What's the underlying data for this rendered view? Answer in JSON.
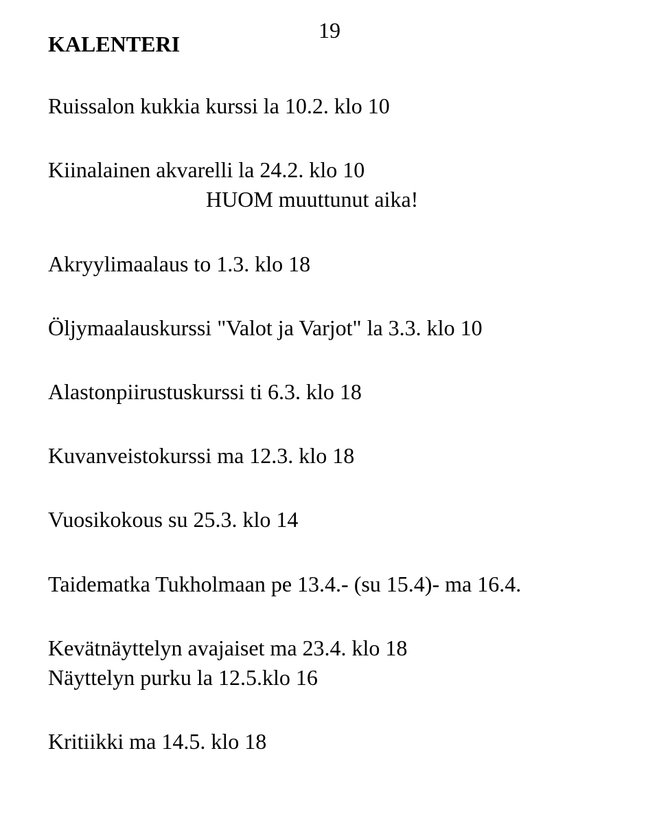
{
  "page_number": "19",
  "heading": "KALENTERI",
  "entries": {
    "e1": {
      "line1": "Ruissalon kukkia kurssi la 10.2. klo 10"
    },
    "e2": {
      "line1": "Kiinalainen akvarelli la 24.2. klo 10",
      "sub": "HUOM muuttunut aika!"
    },
    "e3": {
      "line1": "Akryylimaalaus to 1.3. klo 18"
    },
    "e4": {
      "line1": "Öljymaalauskurssi \"Valot ja Varjot\" la 3.3. klo 10"
    },
    "e5": {
      "line1": "Alastonpiirustuskurssi ti 6.3. klo 18"
    },
    "e6": {
      "line1": "Kuvanveistokurssi ma 12.3. klo 18"
    },
    "e7": {
      "line1": "Vuosikokous su 25.3. klo 14"
    },
    "e8": {
      "line1": "Taidematka Tukholmaan pe 13.4.- (su 15.4)- ma 16.4."
    },
    "e9": {
      "line1": "Kevätnäyttelyn avajaiset ma 23.4. klo 18",
      "line2": "Näyttelyn purku la 12.5.klo 16"
    },
    "e10": {
      "line1": "Kritiikki ma 14.5. klo 18"
    }
  }
}
